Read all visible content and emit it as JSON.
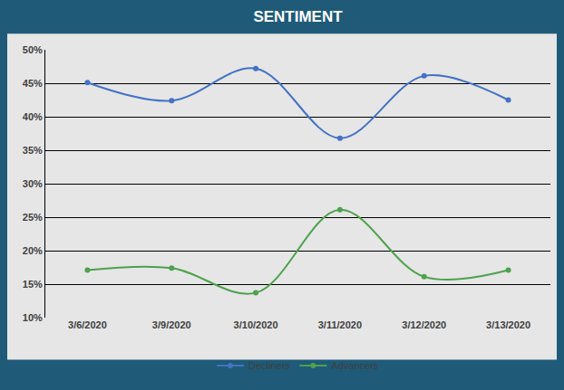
{
  "chart_data": {
    "type": "line",
    "title": "SENTIMENT",
    "categories": [
      "3/6/2020",
      "3/9/2020",
      "3/10/2020",
      "3/11/2020",
      "3/12/2020",
      "3/13/2020"
    ],
    "series": [
      {
        "name": "Decliners",
        "color": "#4472c4",
        "values": [
          45.1,
          42.4,
          47.2,
          36.8,
          46.1,
          42.5
        ]
      },
      {
        "name": "Advancers",
        "color": "#4ea14e",
        "values": [
          17.1,
          17.4,
          13.7,
          26.1,
          16.1,
          17.1
        ]
      }
    ],
    "ylim": [
      10,
      50
    ],
    "yticks": [
      {
        "value": 10,
        "label": "10%"
      },
      {
        "value": 15,
        "label": "15%"
      },
      {
        "value": 20,
        "label": "20%"
      },
      {
        "value": 25,
        "label": "25%"
      },
      {
        "value": 30,
        "label": "30%"
      },
      {
        "value": 35,
        "label": "35%"
      },
      {
        "value": 40,
        "label": "40%"
      },
      {
        "value": 45,
        "label": "45%"
      },
      {
        "value": 50,
        "label": "50%"
      }
    ],
    "grid": true,
    "legend": "bottom",
    "marker": "circle",
    "line_style": "solid"
  }
}
